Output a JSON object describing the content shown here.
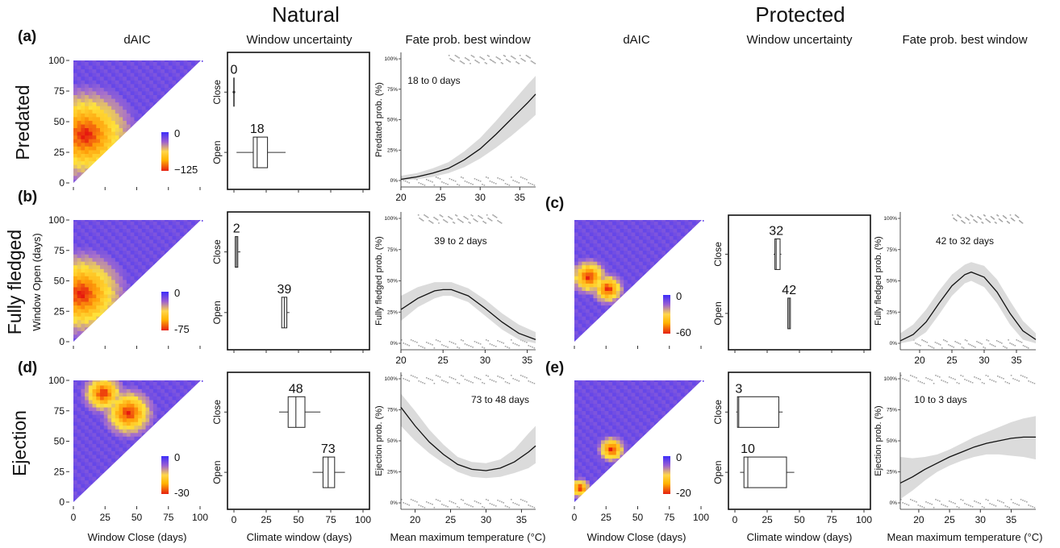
{
  "headings": {
    "natural": "Natural",
    "protected": "Protected"
  },
  "col_titles": {
    "n_daic": "dAIC",
    "n_unc": "Window uncertainty",
    "n_fate": "Fate prob. best window",
    "p_daic": "dAIC",
    "p_unc": "Window uncertainty",
    "p_fate": "Fate prob. best window"
  },
  "panel_letters": [
    "(a)",
    "(b)",
    "(c)",
    "(d)",
    "(e)"
  ],
  "row_labels": [
    "Predated",
    "Fully fledged",
    "Ejection"
  ],
  "heatmap_axis": {
    "y_label": "Window  Open (days)",
    "x_label": "Window Close (days)",
    "ticks": [
      "0",
      "25",
      "50",
      "75",
      "100"
    ]
  },
  "uncertainty_axis": {
    "x_label": "Climate window (days)",
    "x_ticks": [
      "0",
      "25",
      "50",
      "75",
      "100"
    ],
    "y_categories": [
      "Close",
      "Open"
    ]
  },
  "fate_axis": {
    "x_label": "Mean maximum temperature (°C)",
    "y_ticks": [
      "0%",
      "25%",
      "50%",
      "75%",
      "100%"
    ]
  },
  "chart_data": [
    {
      "id": "a-daic",
      "type": "heatmap",
      "title": "dAIC",
      "row": "Predated",
      "xlabel": "",
      "ylabel": "",
      "xlim": [
        0,
        100
      ],
      "ylim": [
        0,
        100
      ],
      "colorbar": {
        "max": "0",
        "min": "−125"
      },
      "hot_spots": [
        {
          "close": 8,
          "open": 38,
          "radius": 42
        }
      ]
    },
    {
      "id": "a-unc",
      "type": "box",
      "title": "Window uncertainty",
      "xlim": [
        0,
        100
      ],
      "categories": [
        "Close",
        "Open"
      ],
      "boxes": [
        {
          "category": "Close",
          "best": "0",
          "min": 0,
          "q1": 0,
          "median": 0,
          "q3": 0,
          "max": 0,
          "cap_low": 0.6,
          "cap_high": 0.6
        },
        {
          "category": "Open",
          "best": "18",
          "min": 2,
          "q1": 15,
          "median": 18,
          "q3": 26,
          "max": 40
        }
      ]
    },
    {
      "id": "a-fate",
      "type": "line",
      "title": "Fate prob. best window",
      "ylabel": "Predated prob. (%)",
      "xticks": [
        "20",
        "25",
        "30",
        "35"
      ],
      "xlim": [
        20,
        37
      ],
      "ylim": [
        0,
        100
      ],
      "annotation": "18 to 0 days",
      "line": {
        "x": [
          20,
          22,
          24,
          26,
          28,
          30,
          32,
          34,
          36,
          37
        ],
        "y": [
          1,
          3,
          6,
          10,
          17,
          26,
          38,
          51,
          64,
          71
        ]
      },
      "band_lower": [
        0,
        1,
        3,
        6,
        11,
        18,
        27,
        37,
        48,
        54
      ],
      "band_upper": [
        4,
        6,
        10,
        15,
        24,
        35,
        49,
        64,
        79,
        86
      ],
      "rug_top": [
        [
          26,
          37
        ]
      ],
      "rug_bottom": [
        [
          20,
          37
        ]
      ]
    },
    {
      "id": "b-daic",
      "type": "heatmap",
      "title": "dAIC",
      "row": "Fully fledged",
      "xlabel": "",
      "ylabel": "Window  Open (days)",
      "xlim": [
        0,
        100
      ],
      "ylim": [
        0,
        100
      ],
      "colorbar": {
        "max": "0",
        "min": "-75"
      },
      "hot_spots": [
        {
          "close": 5,
          "open": 38,
          "radius": 38
        }
      ]
    },
    {
      "id": "b-unc",
      "type": "box",
      "title": "Window uncertainty",
      "xlim": [
        0,
        100
      ],
      "categories": [
        "Close",
        "Open"
      ],
      "boxes": [
        {
          "category": "Close",
          "best": "2",
          "min": 1,
          "q1": 1,
          "median": 2,
          "q3": 3,
          "max": 5
        },
        {
          "category": "Open",
          "best": "39",
          "min": 37,
          "q1": 37,
          "median": 39,
          "q3": 41,
          "max": 43
        }
      ]
    },
    {
      "id": "b-fate",
      "type": "line",
      "title": "Fate prob. best window",
      "ylabel": "Fully fledged prob. (%)",
      "xticks": [
        "20",
        "25",
        "30",
        "35"
      ],
      "xlim": [
        20,
        36
      ],
      "ylim": [
        0,
        100
      ],
      "annotation": "39 to 2 days",
      "line": {
        "x": [
          20,
          22,
          24,
          25,
          26,
          28,
          30,
          32,
          34,
          36
        ],
        "y": [
          27,
          36,
          42,
          43,
          43,
          38,
          28,
          17,
          8,
          3
        ]
      },
      "band_lower": [
        18,
        29,
        36,
        38,
        38,
        33,
        22,
        11,
        3,
        0
      ],
      "band_upper": [
        38,
        45,
        49,
        49,
        49,
        44,
        35,
        24,
        15,
        9
      ],
      "rug_top": [
        [
          22,
          32
        ]
      ],
      "rug_bottom": [
        [
          20,
          36
        ]
      ]
    },
    {
      "id": "c-daic",
      "type": "heatmap",
      "title": "dAIC",
      "row": "Fully fledged",
      "xlim": [
        0,
        100
      ],
      "ylim": [
        0,
        100
      ],
      "colorbar": {
        "max": "0",
        "min": "-60"
      },
      "hot_spots": [
        {
          "close": 25,
          "open": 42,
          "radius": 14
        },
        {
          "close": 10,
          "open": 52,
          "radius": 16
        }
      ]
    },
    {
      "id": "c-unc",
      "type": "box",
      "title": "Window uncertainty",
      "xlim": [
        0,
        100
      ],
      "categories": [
        "Close",
        "Open"
      ],
      "boxes": [
        {
          "category": "Close",
          "best": "32",
          "min": 30,
          "q1": 31,
          "median": 32,
          "q3": 35,
          "max": 36
        },
        {
          "category": "Open",
          "best": "42",
          "min": 41,
          "q1": 41,
          "median": 42,
          "q3": 43,
          "max": 43
        }
      ]
    },
    {
      "id": "c-fate",
      "type": "line",
      "title": "Fate prob. best window",
      "ylabel": "Fully fledged prob. (%)",
      "xticks": [
        "20",
        "25",
        "30",
        "35"
      ],
      "xlim": [
        17,
        38
      ],
      "ylim": [
        0,
        100
      ],
      "annotation": "42 to 32 days",
      "line": {
        "x": [
          17,
          19,
          21,
          23,
          25,
          27,
          28,
          30,
          32,
          34,
          36,
          38
        ],
        "y": [
          2,
          7,
          17,
          32,
          46,
          55,
          57,
          53,
          41,
          24,
          10,
          3
        ]
      },
      "band_lower": [
        0,
        2,
        9,
        23,
        38,
        48,
        50,
        45,
        32,
        15,
        3,
        0
      ],
      "band_upper": [
        8,
        15,
        27,
        42,
        55,
        63,
        65,
        62,
        51,
        34,
        18,
        8
      ],
      "rug_top": [
        [
          25,
          36
        ]
      ],
      "rug_bottom": [
        [
          19,
          37
        ]
      ]
    },
    {
      "id": "d-daic",
      "type": "heatmap",
      "title": "dAIC",
      "row": "Ejection",
      "xlabel": "Window Close (days)",
      "ylabel": "",
      "xlim": [
        0,
        100
      ],
      "ylim": [
        0,
        100
      ],
      "colorbar": {
        "max": "0",
        "min": "-30"
      },
      "hot_spots": [
        {
          "close": 42,
          "open": 72,
          "radius": 22
        },
        {
          "close": 22,
          "open": 88,
          "radius": 18
        }
      ]
    },
    {
      "id": "d-unc",
      "type": "box",
      "title": "Window uncertainty",
      "xlabel": "Climate window (days)",
      "xlim": [
        0,
        100
      ],
      "categories": [
        "Close",
        "Open"
      ],
      "boxes": [
        {
          "category": "Close",
          "best": "48",
          "min": 35,
          "q1": 42,
          "median": 48,
          "q3": 55,
          "max": 67
        },
        {
          "category": "Open",
          "best": "73",
          "min": 61,
          "q1": 69,
          "median": 73,
          "q3": 78,
          "max": 86
        }
      ]
    },
    {
      "id": "d-fate",
      "type": "line",
      "title": "Fate prob. best window",
      "ylabel": "Ejection prob. (%)",
      "xlabel": "Mean maximum temperature (°C)",
      "xticks": [
        "20",
        "25",
        "30",
        "35"
      ],
      "xlim": [
        18,
        37
      ],
      "ylim": [
        0,
        100
      ],
      "annotation": "73 to 48 days",
      "line": {
        "x": [
          18,
          20,
          22,
          24,
          26,
          28,
          30,
          32,
          34,
          36,
          37
        ],
        "y": [
          77,
          62,
          49,
          39,
          31,
          27,
          26,
          28,
          33,
          41,
          46
        ]
      },
      "band_lower": [
        62,
        50,
        40,
        32,
        25,
        21,
        20,
        21,
        24,
        28,
        32
      ],
      "band_upper": [
        88,
        74,
        59,
        47,
        37,
        33,
        32,
        35,
        43,
        56,
        62
      ],
      "rug_top": [
        [
          18,
          37
        ]
      ],
      "rug_bottom": [
        [
          18,
          37
        ]
      ]
    },
    {
      "id": "e-daic",
      "type": "heatmap",
      "title": "dAIC",
      "row": "Ejection",
      "xlabel": "Window Close (days)",
      "xlim": [
        0,
        100
      ],
      "ylim": [
        0,
        100
      ],
      "colorbar": {
        "max": "0",
        "min": "-20"
      },
      "hot_spots": [
        {
          "close": 28,
          "open": 42,
          "radius": 12
        },
        {
          "close": 3,
          "open": 10,
          "radius": 9
        }
      ]
    },
    {
      "id": "e-unc",
      "type": "box",
      "title": "Window uncertainty",
      "xlabel": "Climate window (days)",
      "xlim": [
        0,
        100
      ],
      "categories": [
        "Close",
        "Open"
      ],
      "boxes": [
        {
          "category": "Close",
          "best": "3",
          "min": 1,
          "q1": 2,
          "median": 3,
          "q3": 34,
          "max": 37
        },
        {
          "category": "Open",
          "best": "10",
          "min": 4,
          "q1": 7,
          "median": 10,
          "q3": 40,
          "max": 46
        }
      ]
    },
    {
      "id": "e-fate",
      "type": "line",
      "title": "Fate prob. best window",
      "ylabel": "Ejection prob. (%)",
      "xlabel": "Mean maximum temperature (°C)",
      "xticks": [
        "20",
        "25",
        "30",
        "35"
      ],
      "xlim": [
        17,
        39
      ],
      "ylim": [
        0,
        100
      ],
      "annotation": "10 to 3 days",
      "line": {
        "x": [
          17,
          19,
          21,
          23,
          25,
          27,
          29,
          31,
          33,
          35,
          37,
          39
        ],
        "y": [
          16,
          21,
          27,
          32,
          37,
          41,
          45,
          48,
          50,
          52,
          53,
          53
        ]
      },
      "band_lower": [
        3,
        10,
        18,
        25,
        30,
        34,
        37,
        39,
        39,
        38,
        37,
        35
      ],
      "band_upper": [
        37,
        36,
        37,
        39,
        43,
        48,
        53,
        57,
        61,
        65,
        68,
        70
      ],
      "rug_top": [
        [
          17,
          39
        ]
      ],
      "rug_bottom": [
        [
          17,
          39
        ]
      ]
    }
  ]
}
